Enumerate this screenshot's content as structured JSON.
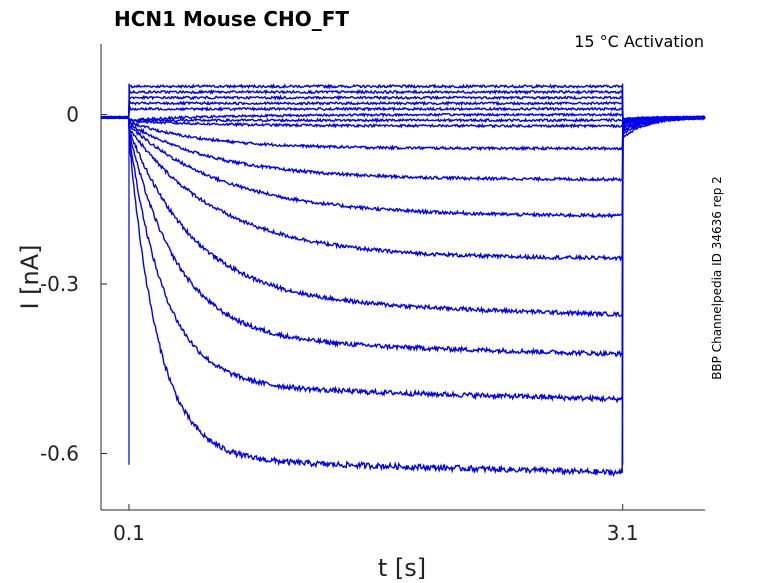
{
  "chart_data": {
    "type": "line",
    "title": "HCN1  Mouse  CHO_FT",
    "annotation": "15 °C  Activation",
    "side_label": "BBP Channelpedia ID 34636 rep 2",
    "xlabel": "t [s]",
    "ylabel": "I [nA]",
    "xlim": [
      -0.07,
      3.6
    ],
    "ylim": [
      -0.7,
      0.125
    ],
    "x_ticks": [
      0.1,
      3.1
    ],
    "x_tick_labels": [
      "0.1",
      "3.1"
    ],
    "y_ticks": [
      0,
      -0.3,
      -0.6
    ],
    "y_tick_labels": [
      "0",
      "-0.3",
      "-0.6"
    ],
    "pulse_start": 0.1,
    "pulse_end": 3.1,
    "trace_color": "#0000ee",
    "sweep_steady_state_nA": [
      0.05,
      0.04,
      0.03,
      0.02,
      0.01,
      0.0,
      -0.01,
      -0.02,
      -0.06,
      -0.115,
      -0.18,
      -0.255,
      -0.33,
      -0.4,
      -0.48,
      -0.61
    ],
    "sweep_time_constant_s": [
      0.5,
      0.5,
      0.5,
      0.5,
      0.5,
      0.5,
      0.5,
      0.5,
      0.45,
      0.55,
      0.6,
      0.55,
      0.4,
      0.3,
      0.22,
      0.18
    ]
  }
}
